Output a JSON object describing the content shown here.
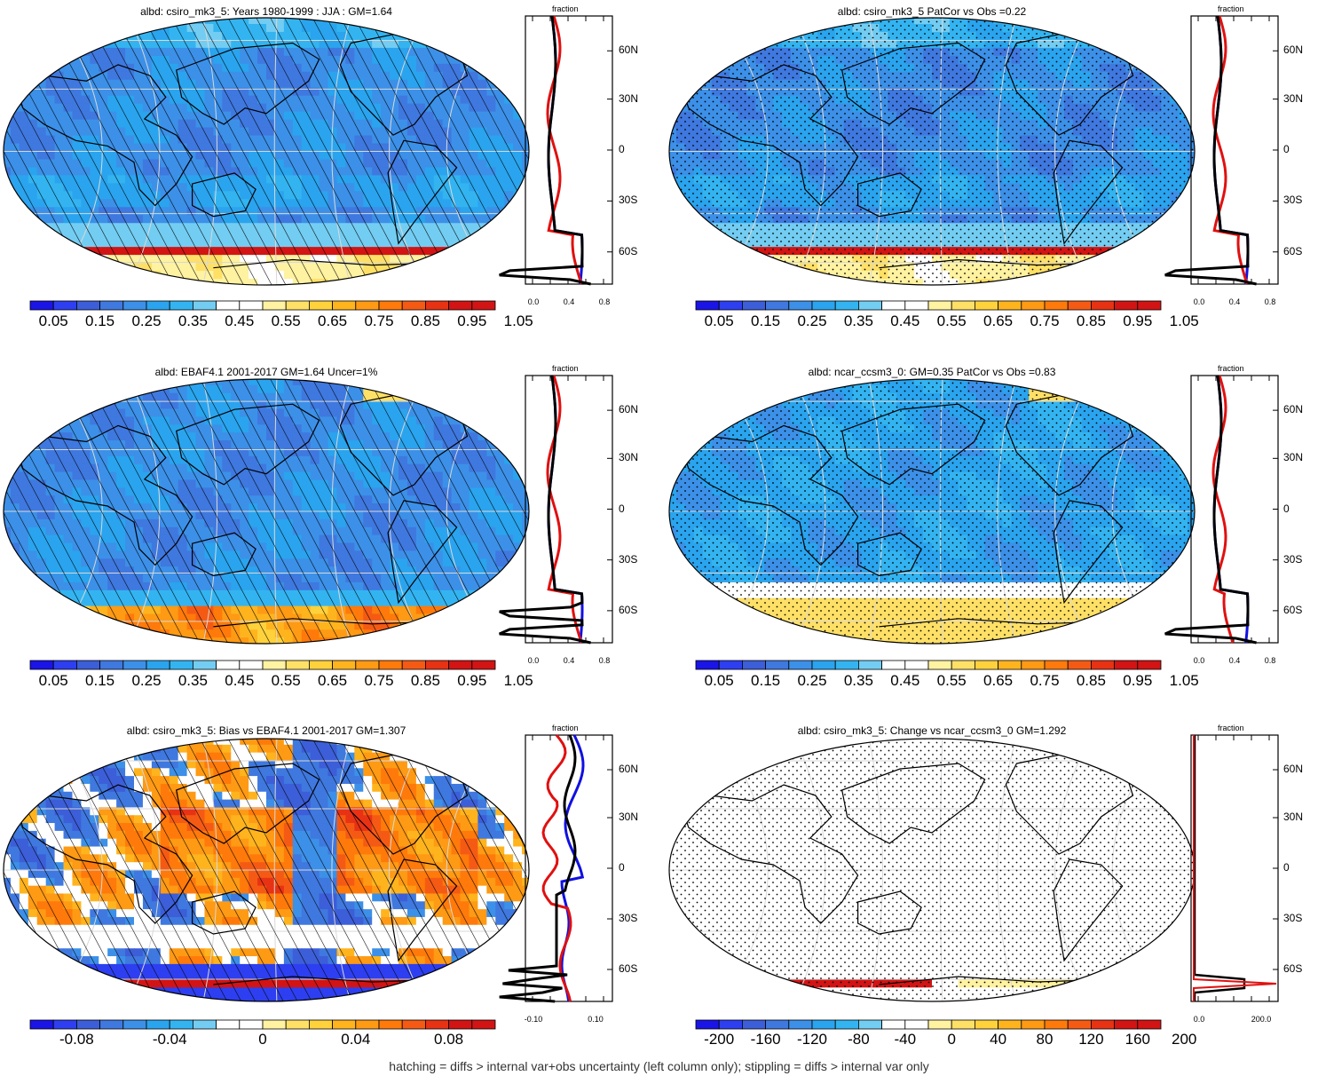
{
  "palette": [
    "#1a14e6",
    "#2d3ff0",
    "#3c5ed8",
    "#3f78df",
    "#3c90e8",
    "#2aa4ee",
    "#33b4f1",
    "#73cdf2",
    "#ffffff",
    "#ffffff",
    "#fff2a0",
    "#ffe066",
    "#ffd23c",
    "#ffb41e",
    "#ff9a14",
    "#ff7a0a",
    "#f55a14",
    "#e83214",
    "#d21414"
  ],
  "footer": "hatching = diffs > internal var+obs uncertainty (left column only); stippling = diffs > internal var only",
  "chart_data": [
    {
      "type": "heatmap",
      "title": "albd: csiro_mk3_5: Years 1980-1999 : JJA : GM=1.64",
      "colorbar_ticks": [
        "0.05",
        "0.15",
        "0.25",
        "0.35",
        "0.45",
        "0.55",
        "0.65",
        "0.75",
        "0.85",
        "0.95",
        "1.05"
      ],
      "lat_ticks": [
        "60N",
        "30N",
        "0",
        "30S",
        "60S"
      ],
      "profile_xlabel": "fraction",
      "profile_xticks": [
        "0.0",
        "0.4",
        "0.8"
      ],
      "pattern": "hatch",
      "field": "base_a",
      "profile_style": "abs"
    },
    {
      "type": "heatmap",
      "title": "albd: csiro_mk3_5 PatCor vs Obs =0.22",
      "colorbar_ticks": [
        "0.05",
        "0.15",
        "0.25",
        "0.35",
        "0.45",
        "0.55",
        "0.65",
        "0.75",
        "0.85",
        "0.95",
        "1.05"
      ],
      "lat_ticks": [
        "60N",
        "30N",
        "0",
        "30S",
        "60S"
      ],
      "profile_xlabel": "fraction",
      "profile_xticks": [
        "0.0",
        "0.4",
        "0.8"
      ],
      "pattern": "stipple",
      "field": "base_b",
      "profile_style": "abs"
    },
    {
      "type": "heatmap",
      "title": "albd: EBAF4.1 2001-2017 GM=1.64 Uncer=1%",
      "colorbar_ticks": [
        "0.05",
        "0.15",
        "0.25",
        "0.35",
        "0.45",
        "0.55",
        "0.65",
        "0.75",
        "0.85",
        "0.95",
        "1.05"
      ],
      "lat_ticks": [
        "60N",
        "30N",
        "0",
        "30S",
        "60S"
      ],
      "profile_xlabel": "fraction",
      "profile_xticks": [
        "0.0",
        "0.4",
        "0.8"
      ],
      "pattern": "hatch",
      "field": "obs",
      "profile_style": "obs"
    },
    {
      "type": "heatmap",
      "title": "albd: ncar_ccsm3_0: GM=0.35 PatCor vs Obs =0.83",
      "colorbar_ticks": [
        "0.05",
        "0.15",
        "0.25",
        "0.35",
        "0.45",
        "0.55",
        "0.65",
        "0.75",
        "0.85",
        "0.95",
        "1.05"
      ],
      "lat_ticks": [
        "60N",
        "30N",
        "0",
        "30S",
        "60S"
      ],
      "profile_xlabel": "fraction",
      "profile_xticks": [
        "0.0",
        "0.4",
        "0.8"
      ],
      "pattern": "stipple",
      "field": "model2",
      "profile_style": "abs2"
    },
    {
      "type": "heatmap",
      "title": "albd: csiro_mk3_5: Bias vs EBAF4.1 2001-2017 GM=1.307",
      "colorbar_ticks": [
        "-0.08",
        "-0.04",
        "0",
        "0.04",
        "0.08"
      ],
      "lat_ticks": [
        "60N",
        "30N",
        "0",
        "30S",
        "60S"
      ],
      "profile_xlabel": "fraction",
      "profile_xticks": [
        "-0.10",
        "0.10"
      ],
      "pattern": "hatch",
      "field": "bias",
      "profile_style": "bias"
    },
    {
      "type": "heatmap",
      "title": "albd: csiro_mk3_5: Change vs ncar_ccsm3_0 GM=1.292",
      "colorbar_ticks": [
        "-200",
        "-160",
        "-120",
        "-80",
        "-40",
        "0",
        "40",
        "80",
        "120",
        "160",
        "200"
      ],
      "lat_ticks": [
        "60N",
        "30N",
        "0",
        "30S",
        "60S"
      ],
      "profile_xlabel": "fraction",
      "profile_xticks": [
        "0.0",
        "200.0"
      ],
      "pattern": "stipple",
      "field": "change",
      "profile_style": "change"
    }
  ]
}
